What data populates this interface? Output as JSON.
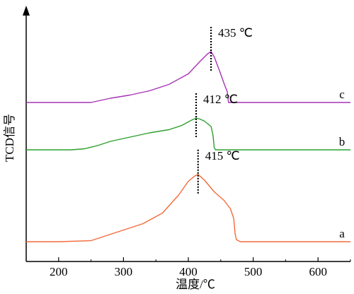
{
  "chart_data": {
    "type": "line",
    "xlabel": "温度/℃",
    "ylabel": "TCD信号",
    "xlim": [
      150,
      650
    ],
    "x_ticks": [
      200,
      300,
      400,
      500,
      600
    ],
    "y_ticks_shown": false,
    "grid": false,
    "series": [
      {
        "name": "a",
        "color": "#f26b3a",
        "points": [
          [
            150,
            0.0
          ],
          [
            200,
            0.0
          ],
          [
            250,
            0.01
          ],
          [
            270,
            0.05
          ],
          [
            300,
            0.11
          ],
          [
            330,
            0.17
          ],
          [
            360,
            0.27
          ],
          [
            385,
            0.44
          ],
          [
            400,
            0.57
          ],
          [
            410,
            0.62
          ],
          [
            415,
            0.635
          ],
          [
            425,
            0.58
          ],
          [
            440,
            0.47
          ],
          [
            455,
            0.39
          ],
          [
            465,
            0.31
          ],
          [
            470,
            0.22
          ],
          [
            472,
            0.08
          ],
          [
            474,
            0.02
          ],
          [
            480,
            0.0
          ],
          [
            650,
            0.0
          ]
        ]
      },
      {
        "name": "b",
        "color": "#2ca02c",
        "points": [
          [
            150,
            0.0
          ],
          [
            220,
            0.0
          ],
          [
            240,
            0.01
          ],
          [
            260,
            0.04
          ],
          [
            280,
            0.08
          ],
          [
            310,
            0.12
          ],
          [
            340,
            0.16
          ],
          [
            370,
            0.19
          ],
          [
            390,
            0.23
          ],
          [
            405,
            0.28
          ],
          [
            412,
            0.3
          ],
          [
            418,
            0.29
          ],
          [
            425,
            0.27
          ],
          [
            435,
            0.22
          ],
          [
            438,
            0.14
          ],
          [
            440,
            0.02
          ],
          [
            442,
            0.0
          ],
          [
            650,
            0.0
          ]
        ]
      },
      {
        "name": "c",
        "color": "#a633b5",
        "points": [
          [
            150,
            0.0
          ],
          [
            250,
            0.0
          ],
          [
            280,
            0.04
          ],
          [
            310,
            0.07
          ],
          [
            340,
            0.11
          ],
          [
            370,
            0.17
          ],
          [
            400,
            0.27
          ],
          [
            420,
            0.4
          ],
          [
            430,
            0.46
          ],
          [
            435,
            0.48
          ],
          [
            440,
            0.43
          ],
          [
            448,
            0.3
          ],
          [
            455,
            0.18
          ],
          [
            460,
            0.1
          ],
          [
            462,
            0.0
          ],
          [
            650,
            0.0
          ]
        ]
      }
    ],
    "annotations": [
      {
        "series": "a",
        "x": 415,
        "text": "415 ℃"
      },
      {
        "series": "b",
        "x": 412,
        "text": "412 ℃"
      },
      {
        "series": "c",
        "x": 435,
        "text": "435 ℃"
      }
    ]
  }
}
